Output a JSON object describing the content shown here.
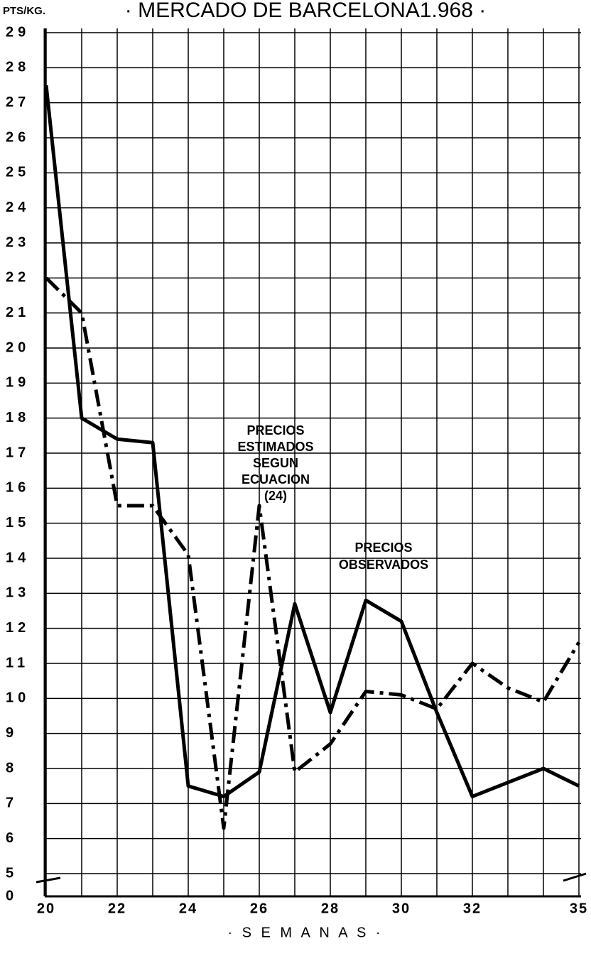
{
  "chart_data": {
    "type": "line",
    "title": "· MERCADO DE BARCELONA1.968 ·",
    "y_label": "PTS/KG.",
    "x_label": "· S E M A N A S ·",
    "x": [
      20,
      21,
      22,
      23,
      24,
      25,
      26,
      27,
      28,
      29,
      30,
      31,
      32,
      33,
      34,
      35
    ],
    "series": [
      {
        "name": "PRECIOS OBSERVADOS",
        "color": "#000000",
        "style": "solid",
        "values": [
          27.5,
          18,
          17.4,
          17.3,
          7.5,
          7.2,
          7.9,
          12.7,
          9.6,
          12.8,
          12.2,
          9.6,
          7.2,
          7.6,
          8.0,
          7.5
        ]
      },
      {
        "name": "PRECIOS ESTIMADOS SEGUN ECUACION (24)",
        "color": "#000000",
        "style": "dashdot",
        "values": [
          22,
          21,
          15.5,
          15.5,
          14.1,
          6.3,
          15.5,
          7.9,
          8.7,
          10.2,
          10.1,
          9.7,
          11.0,
          10.3,
          9.9,
          11.6
        ]
      }
    ],
    "annotations": [
      {
        "lines": [
          "PRECIOS",
          "ESTIMADOS",
          "SEGUN",
          "ECUACION",
          "(24)"
        ]
      },
      {
        "lines": [
          "PRECIOS",
          "OBSERVADOS"
        ]
      }
    ],
    "xlim": [
      20,
      35
    ],
    "xticks": [
      20,
      22,
      24,
      26,
      28,
      30,
      32,
      35
    ],
    "ylim": [
      0,
      29
    ],
    "axis_break": [
      0,
      5
    ],
    "yticks": [
      0,
      5,
      6,
      7,
      8,
      9,
      10,
      11,
      12,
      13,
      14,
      15,
      16,
      17,
      18,
      19,
      20,
      21,
      22,
      23,
      24,
      25,
      26,
      27,
      28,
      29
    ],
    "grid": true
  }
}
